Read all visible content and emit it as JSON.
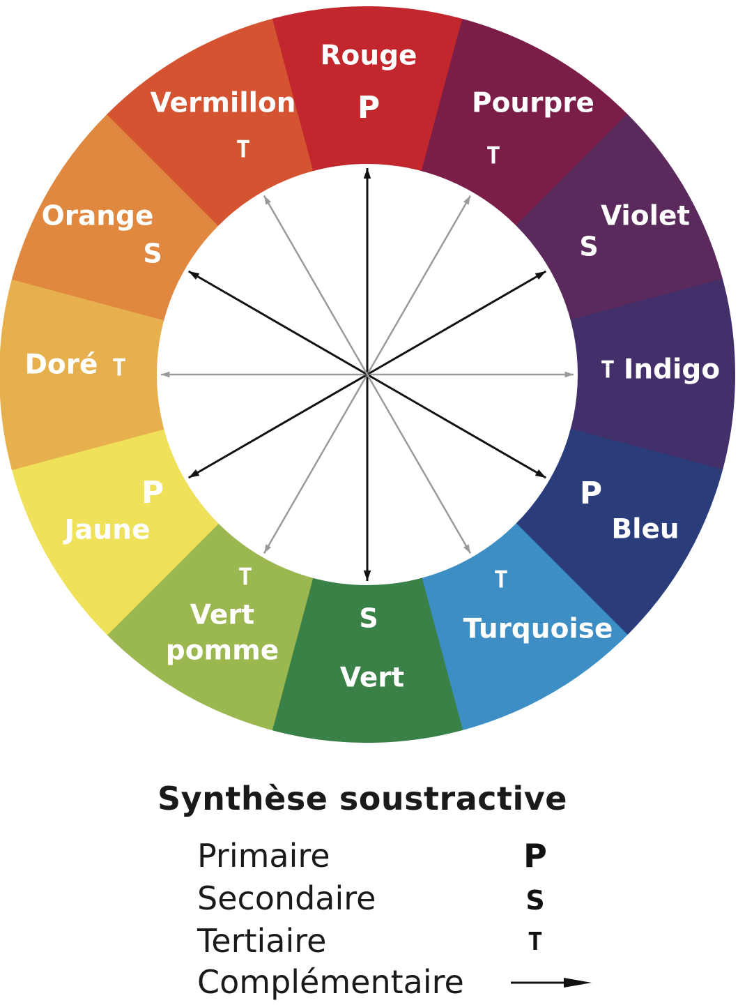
{
  "wheel": {
    "segments": [
      {
        "label": [
          "Rouge"
        ],
        "tag": "P",
        "color": "#C1272D"
      },
      {
        "label": [
          "Pourpre"
        ],
        "tag": "T",
        "color": "#7A1E48"
      },
      {
        "label": [
          "Violet"
        ],
        "tag": "S",
        "color": "#5A2A5C"
      },
      {
        "label": [
          "Indigo"
        ],
        "tag": "T",
        "color": "#43306A"
      },
      {
        "label": [
          "Bleu"
        ],
        "tag": "P",
        "color": "#2B3C7A"
      },
      {
        "label": [
          "Turquoise"
        ],
        "tag": "T",
        "color": "#3C8EC4"
      },
      {
        "label": [
          "Vert"
        ],
        "tag": "S",
        "color": "#3A8148"
      },
      {
        "label": [
          "Vert",
          "pomme"
        ],
        "tag": "T",
        "color": "#9BB74F"
      },
      {
        "label": [
          "Jaune"
        ],
        "tag": "P",
        "color": "#EFE15A"
      },
      {
        "label": [
          "Doré"
        ],
        "tag": "T",
        "color": "#E6B04E"
      },
      {
        "label": [
          "Orange"
        ],
        "tag": "S",
        "color": "#E0883F"
      },
      {
        "label": [
          "Vermillon"
        ],
        "tag": "T",
        "color": "#D45432"
      }
    ],
    "arrow_colors": {
      "primary_secondary": "#111111",
      "tertiary": "#9a9a9a"
    }
  },
  "legend": {
    "title": "Synthèse  soustractive",
    "rows": [
      {
        "label": "Primaire",
        "symbol": "P"
      },
      {
        "label": "Secondaire",
        "symbol": "S"
      },
      {
        "label": "Tertiaire",
        "symbol": "T"
      },
      {
        "label": "Complémentaire",
        "symbol": "arrow"
      }
    ]
  }
}
